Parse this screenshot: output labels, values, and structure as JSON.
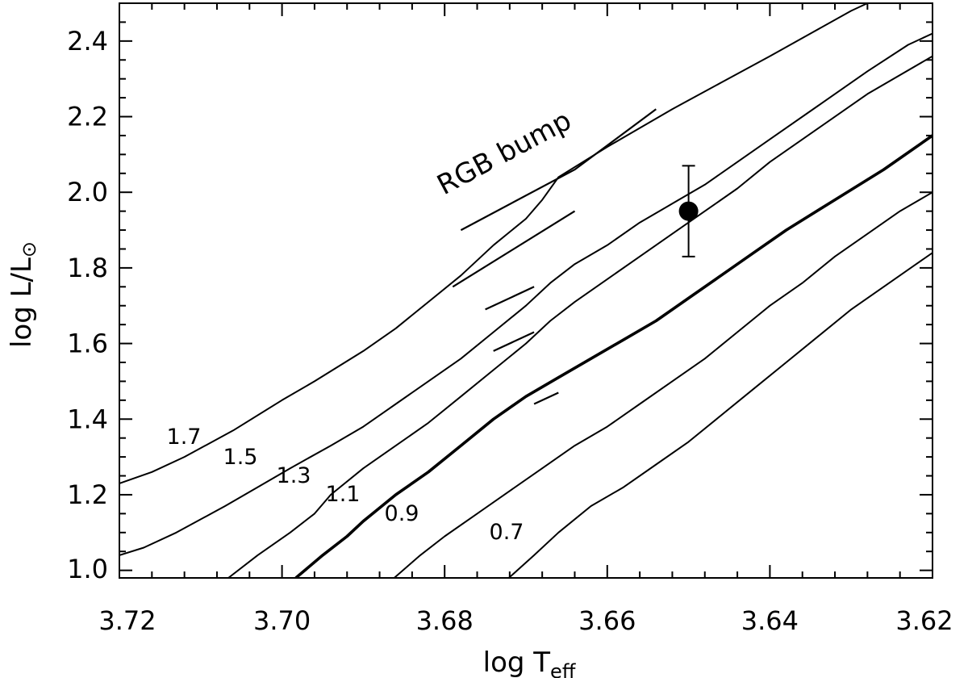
{
  "chart_data": {
    "type": "line",
    "title": "",
    "xlabel_main": "log T",
    "xlabel_sub": "eff",
    "ylabel_main": "log L/L",
    "ylabel_sub": "⊙",
    "xlim": [
      3.72,
      3.62
    ],
    "ylim": [
      0.98,
      2.5
    ],
    "x_ticks": [
      "3.72",
      "3.70",
      "3.68",
      "3.66",
      "3.64",
      "3.62"
    ],
    "y_ticks": [
      "1.0",
      "1.2",
      "1.4",
      "1.6",
      "1.8",
      "2.0",
      "2.2",
      "2.4"
    ],
    "annotation": "RGB bump",
    "series": [
      {
        "name": "1.7",
        "bold": false,
        "points": [
          [
            3.72,
            1.23
          ],
          [
            3.716,
            1.26
          ],
          [
            3.712,
            1.3
          ],
          [
            3.706,
            1.37
          ],
          [
            3.7,
            1.45
          ],
          [
            3.696,
            1.5
          ],
          [
            3.69,
            1.58
          ],
          [
            3.686,
            1.64
          ],
          [
            3.682,
            1.71
          ],
          [
            3.678,
            1.78
          ],
          [
            3.674,
            1.86
          ],
          [
            3.67,
            1.93
          ],
          [
            3.668,
            1.98
          ],
          [
            3.666,
            2.04
          ],
          [
            3.663,
            2.08
          ],
          [
            3.66,
            2.12
          ],
          [
            3.656,
            2.17
          ],
          [
            3.652,
            2.22
          ],
          [
            3.646,
            2.29
          ],
          [
            3.64,
            2.36
          ],
          [
            3.635,
            2.42
          ],
          [
            3.63,
            2.48
          ],
          [
            3.628,
            2.5
          ]
        ],
        "bump": [
          [
            3.678,
            1.9
          ],
          [
            3.664,
            2.06
          ],
          [
            3.654,
            2.22
          ]
        ]
      },
      {
        "name": "1.5",
        "bold": false,
        "points": [
          [
            3.72,
            1.04
          ],
          [
            3.717,
            1.06
          ],
          [
            3.713,
            1.1
          ],
          [
            3.707,
            1.17
          ],
          [
            3.703,
            1.22
          ],
          [
            3.699,
            1.27
          ],
          [
            3.694,
            1.33
          ],
          [
            3.69,
            1.38
          ],
          [
            3.686,
            1.44
          ],
          [
            3.682,
            1.5
          ],
          [
            3.678,
            1.56
          ],
          [
            3.674,
            1.63
          ],
          [
            3.67,
            1.7
          ],
          [
            3.667,
            1.76
          ],
          [
            3.664,
            1.81
          ],
          [
            3.66,
            1.86
          ],
          [
            3.656,
            1.92
          ],
          [
            3.652,
            1.97
          ],
          [
            3.648,
            2.02
          ],
          [
            3.644,
            2.08
          ],
          [
            3.64,
            2.14
          ],
          [
            3.634,
            2.23
          ],
          [
            3.628,
            2.32
          ],
          [
            3.623,
            2.39
          ],
          [
            3.62,
            2.42
          ]
        ],
        "bump": [
          [
            3.679,
            1.75
          ],
          [
            3.664,
            1.95
          ]
        ]
      },
      {
        "name": "1.3",
        "bold": false,
        "points": [
          [
            3.7066,
            0.98
          ],
          [
            3.703,
            1.04
          ],
          [
            3.699,
            1.1
          ],
          [
            3.696,
            1.15
          ],
          [
            3.694,
            1.2
          ],
          [
            3.69,
            1.27
          ],
          [
            3.686,
            1.33
          ],
          [
            3.682,
            1.39
          ],
          [
            3.678,
            1.46
          ],
          [
            3.674,
            1.53
          ],
          [
            3.67,
            1.6
          ],
          [
            3.667,
            1.66
          ],
          [
            3.664,
            1.71
          ],
          [
            3.66,
            1.77
          ],
          [
            3.656,
            1.83
          ],
          [
            3.652,
            1.89
          ],
          [
            3.648,
            1.95
          ],
          [
            3.644,
            2.01
          ],
          [
            3.64,
            2.08
          ],
          [
            3.634,
            2.17
          ],
          [
            3.628,
            2.26
          ],
          [
            3.62,
            2.36
          ]
        ],
        "bump": [
          [
            3.675,
            1.69
          ],
          [
            3.669,
            1.75
          ]
        ]
      },
      {
        "name": "1.1",
        "bold": true,
        "points": [
          [
            3.6983,
            0.98
          ],
          [
            3.695,
            1.04
          ],
          [
            3.692,
            1.09
          ],
          [
            3.69,
            1.13
          ],
          [
            3.686,
            1.2
          ],
          [
            3.682,
            1.26
          ],
          [
            3.678,
            1.33
          ],
          [
            3.674,
            1.4
          ],
          [
            3.67,
            1.46
          ],
          [
            3.666,
            1.51
          ],
          [
            3.662,
            1.56
          ],
          [
            3.658,
            1.61
          ],
          [
            3.654,
            1.66
          ],
          [
            3.65,
            1.72
          ],
          [
            3.646,
            1.78
          ],
          [
            3.642,
            1.84
          ],
          [
            3.638,
            1.9
          ],
          [
            3.632,
            1.98
          ],
          [
            3.626,
            2.06
          ],
          [
            3.62,
            2.15
          ]
        ],
        "bump": [
          [
            3.674,
            1.58
          ],
          [
            3.669,
            1.63
          ]
        ]
      },
      {
        "name": "0.9",
        "bold": false,
        "points": [
          [
            3.6862,
            0.98
          ],
          [
            3.683,
            1.04
          ],
          [
            3.68,
            1.09
          ],
          [
            3.676,
            1.15
          ],
          [
            3.672,
            1.21
          ],
          [
            3.668,
            1.27
          ],
          [
            3.664,
            1.33
          ],
          [
            3.66,
            1.38
          ],
          [
            3.656,
            1.44
          ],
          [
            3.652,
            1.5
          ],
          [
            3.648,
            1.56
          ],
          [
            3.644,
            1.63
          ],
          [
            3.64,
            1.7
          ],
          [
            3.636,
            1.76
          ],
          [
            3.632,
            1.83
          ],
          [
            3.628,
            1.89
          ],
          [
            3.624,
            1.95
          ],
          [
            3.62,
            2.0
          ]
        ],
        "bump": [
          [
            3.669,
            1.44
          ],
          [
            3.666,
            1.47
          ]
        ]
      },
      {
        "name": "0.7",
        "bold": false,
        "points": [
          [
            3.6721,
            0.98
          ],
          [
            3.669,
            1.04
          ],
          [
            3.666,
            1.1
          ],
          [
            3.662,
            1.17
          ],
          [
            3.658,
            1.22
          ],
          [
            3.654,
            1.28
          ],
          [
            3.65,
            1.34
          ],
          [
            3.646,
            1.41
          ],
          [
            3.642,
            1.48
          ],
          [
            3.638,
            1.55
          ],
          [
            3.634,
            1.62
          ],
          [
            3.63,
            1.69
          ],
          [
            3.626,
            1.75
          ],
          [
            3.622,
            1.81
          ],
          [
            3.62,
            1.84
          ]
        ],
        "bump": []
      }
    ],
    "observation": {
      "x": 3.65,
      "y": 1.95,
      "yerr_low": 1.83,
      "yerr_high": 2.07
    },
    "colors": {
      "line": "#000000",
      "background": "#ffffff"
    }
  }
}
